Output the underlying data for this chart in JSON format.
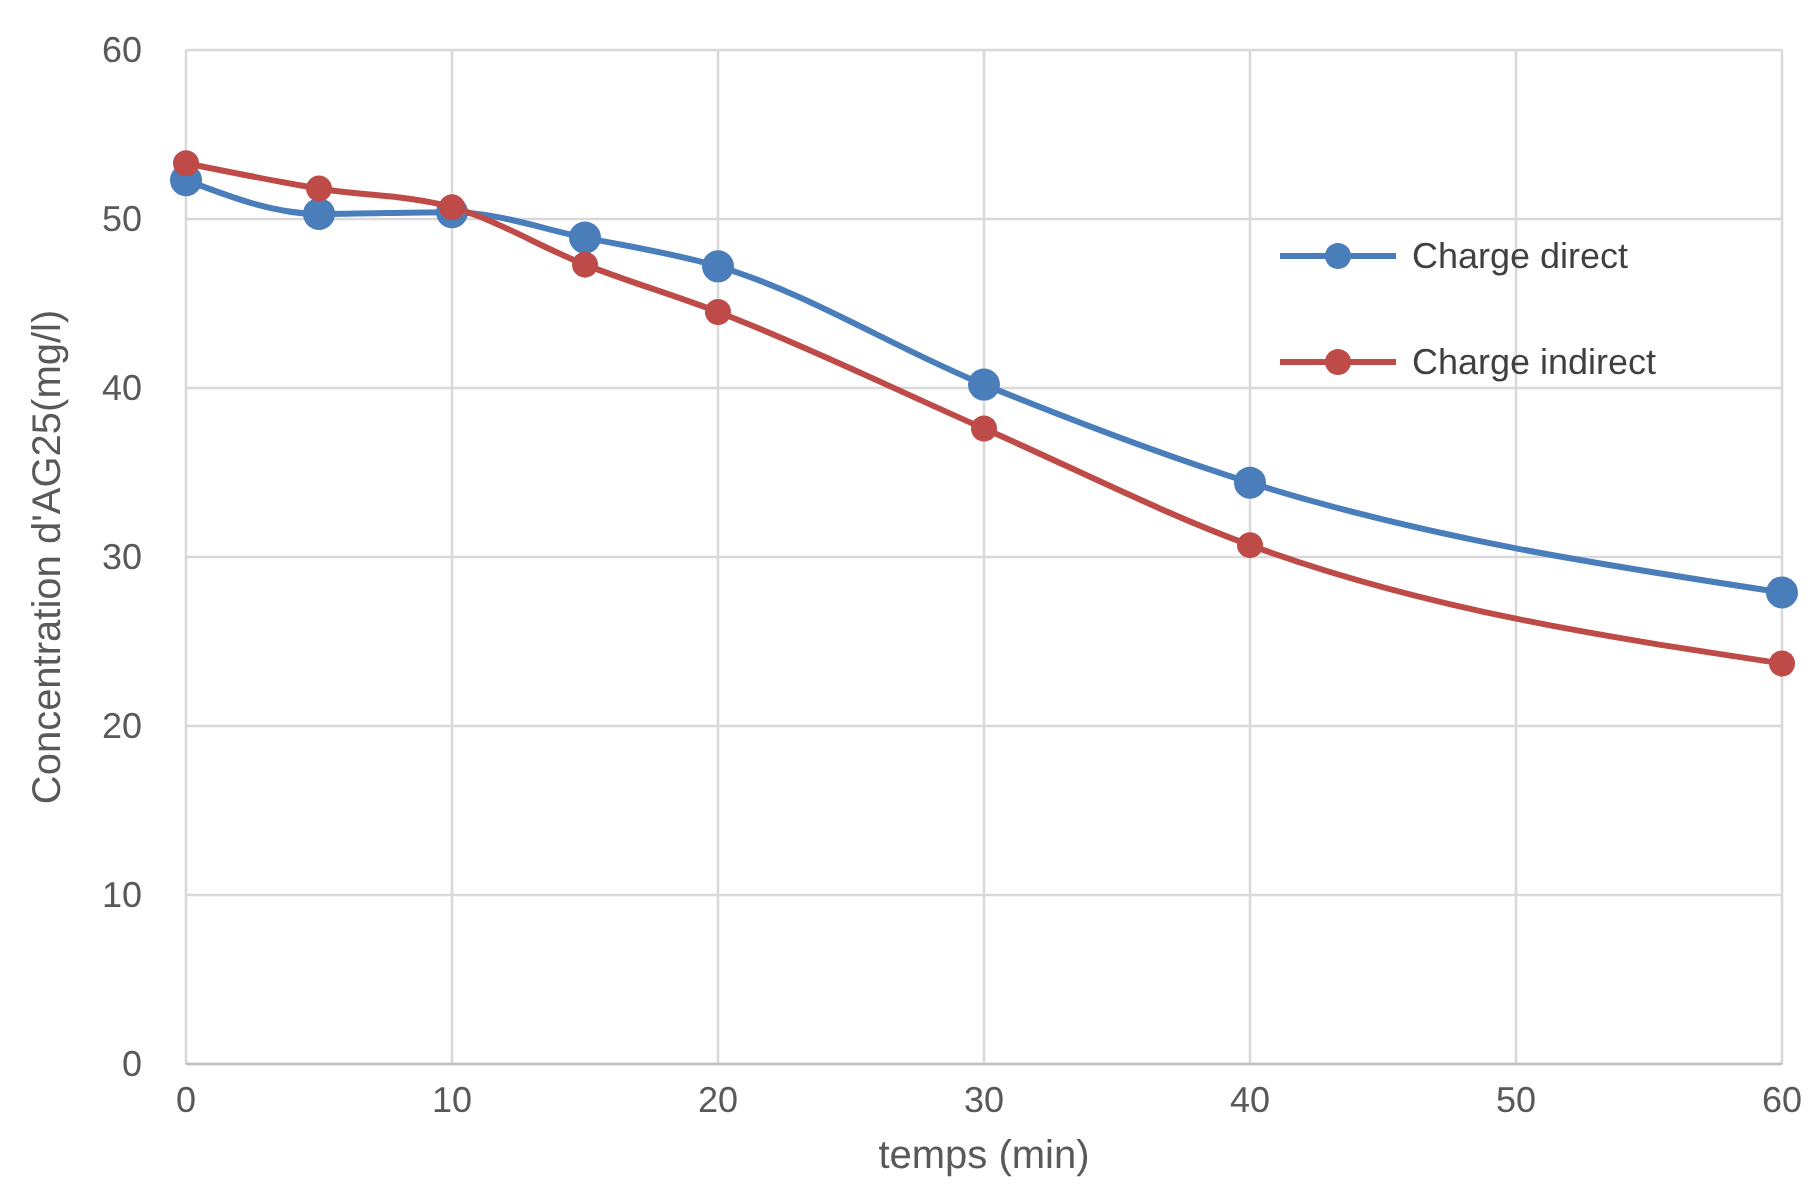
{
  "chart_data": {
    "type": "line",
    "xlabel": "temps (min)",
    "ylabel": "Concentration d'AG25(mg/l)",
    "x": [
      0,
      5,
      10,
      15,
      20,
      30,
      40,
      60
    ],
    "series": [
      {
        "name": "Charge direct",
        "color": "#4a7ebb",
        "values": [
          52.3,
          50.3,
          50.4,
          48.9,
          47.2,
          40.2,
          34.4,
          27.9
        ]
      },
      {
        "name": "Charge indirect",
        "color": "#be4b48",
        "values": [
          53.3,
          51.8,
          50.7,
          47.3,
          44.5,
          37.6,
          30.7,
          23.7
        ]
      }
    ],
    "xlim": [
      0,
      60
    ],
    "xticks": [
      0,
      10,
      20,
      30,
      40,
      50,
      60
    ],
    "ylim": [
      0,
      60
    ],
    "yticks": [
      0,
      10,
      20,
      30,
      40,
      50,
      60
    ],
    "grid": true,
    "legend": "top right",
    "marker": "circle",
    "line_style": "solid"
  }
}
